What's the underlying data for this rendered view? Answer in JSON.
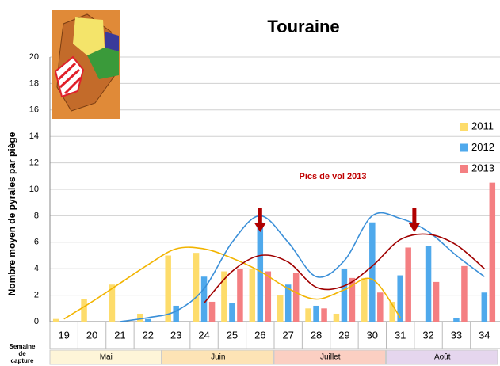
{
  "chart_data": {
    "type": "bar",
    "title": "Touraine",
    "y_label": "Nombre moyen de pyrales par piège",
    "x_label": "Semaine de capture",
    "annotation": "Pics de vol 2013",
    "categories": [
      "19",
      "20",
      "21",
      "22",
      "23",
      "24",
      "25",
      "26",
      "27",
      "28",
      "29",
      "30",
      "31",
      "32",
      "33",
      "34"
    ],
    "months": [
      {
        "name": "Mai",
        "from": 0,
        "to": 3,
        "color": "#fef5d8"
      },
      {
        "name": "Juin",
        "from": 4,
        "to": 7,
        "color": "#fde3b5"
      },
      {
        "name": "Juillet",
        "from": 8,
        "to": 11,
        "color": "#fbcfc2"
      },
      {
        "name": "Août",
        "from": 12,
        "to": 15,
        "color": "#e5d6ee"
      }
    ],
    "series": [
      {
        "name": "2011",
        "color": "#fddc6b",
        "trend_color": "#f2b400",
        "values": [
          0.2,
          1.7,
          2.8,
          0.6,
          5.0,
          5.2,
          3.8,
          4.0,
          2.0,
          1.0,
          0.6,
          3.3,
          1.5,
          0,
          0,
          0
        ],
        "trend": [
          0.2,
          1.5,
          2.9,
          4.3,
          5.5,
          5.5,
          4.8,
          3.8,
          2.5,
          1.7,
          2.4,
          3.2,
          0.3,
          null,
          null,
          null
        ]
      },
      {
        "name": "2012",
        "color": "#4fa9ec",
        "trend_color": "#3a8fd8",
        "values": [
          0,
          0,
          0,
          0.2,
          1.2,
          3.4,
          1.4,
          7.5,
          2.8,
          1.2,
          4.0,
          7.5,
          3.5,
          5.7,
          0.3,
          2.2
        ],
        "trend": [
          null,
          null,
          0,
          0.3,
          0.8,
          2.5,
          6.0,
          8.0,
          6.0,
          3.4,
          4.6,
          8.0,
          7.8,
          6.8,
          5.0,
          3.4
        ]
      },
      {
        "name": "2013",
        "color": "#f47f82",
        "trend_color": "#a00000",
        "values": [
          0,
          0,
          0,
          0,
          0,
          1.5,
          4.0,
          3.8,
          3.7,
          1.0,
          3.3,
          2.2,
          5.6,
          3.0,
          4.2,
          10.5
        ],
        "trend": [
          null,
          null,
          null,
          null,
          null,
          1.4,
          3.8,
          5.0,
          4.5,
          2.6,
          2.7,
          4.2,
          6.2,
          6.6,
          5.8,
          4.0
        ]
      }
    ],
    "arrows": [
      7,
      12.5
    ],
    "ylim": [
      0,
      20
    ],
    "yticks": [
      0,
      2,
      4,
      6,
      8,
      10,
      12,
      14,
      16,
      18,
      20
    ],
    "grid": true
  }
}
